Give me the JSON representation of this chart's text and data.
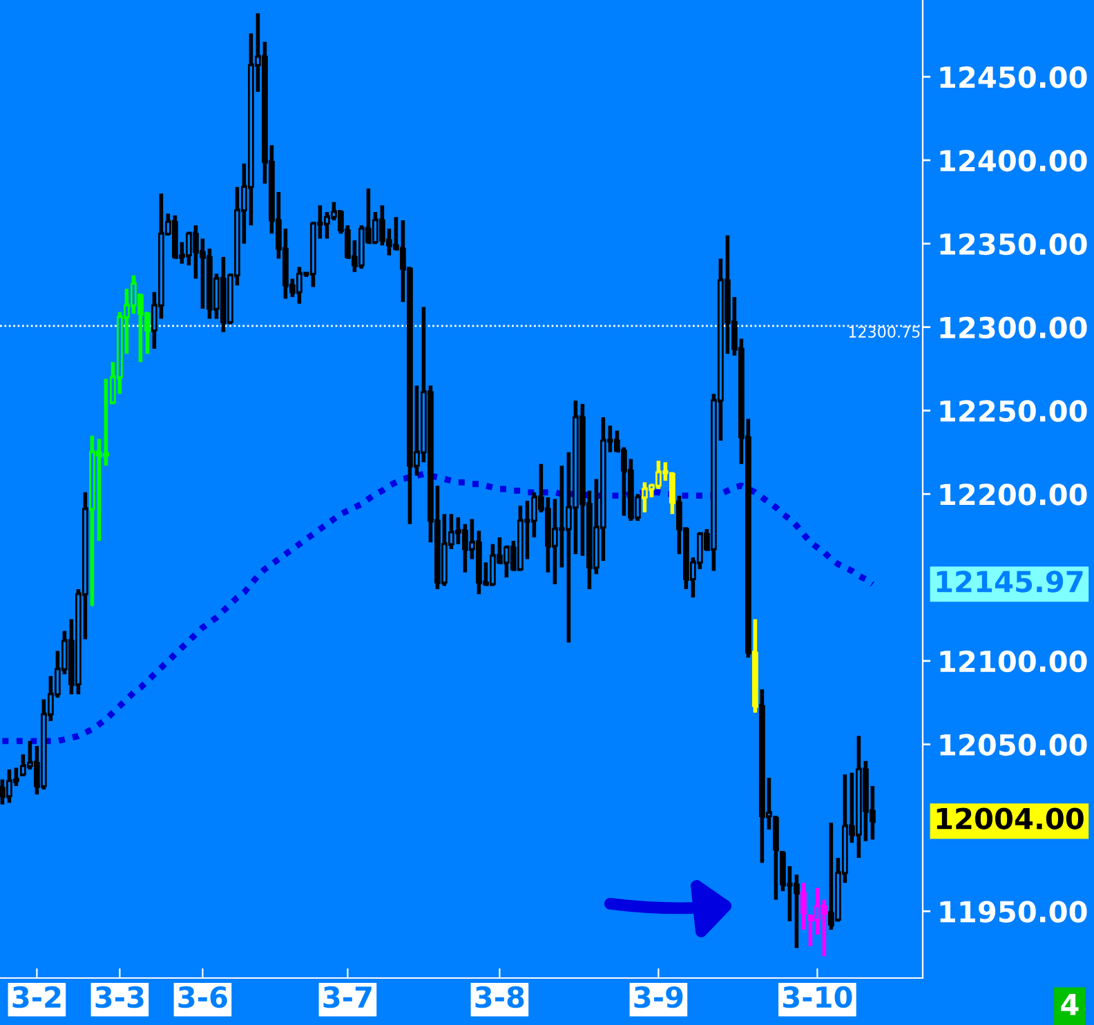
{
  "chart_data": {
    "type": "candlestick",
    "categories": [
      null,
      null,
      null,
      null,
      null,
      "3-2",
      null,
      null,
      null,
      null,
      null,
      null,
      null,
      null,
      null,
      null,
      null,
      "3-3",
      null,
      null,
      null,
      null,
      null,
      null,
      null,
      null,
      null,
      null,
      null,
      "3-6",
      null,
      null,
      null,
      null,
      null,
      null,
      null,
      null,
      null,
      null,
      null,
      null,
      null,
      null,
      null,
      null,
      null,
      null,
      null,
      null,
      "3-7",
      null,
      null,
      null,
      null,
      null,
      null,
      null,
      null,
      null,
      null,
      null,
      null,
      null,
      null,
      null,
      null,
      null,
      null,
      null,
      null,
      null,
      "3-8",
      null,
      null,
      null,
      null,
      null,
      null,
      null,
      null,
      null,
      null,
      null,
      null,
      null,
      null,
      null,
      null,
      null,
      null,
      null,
      null,
      null,
      null,
      "3-9",
      null,
      null,
      null,
      null,
      null,
      null,
      null,
      null,
      null,
      null,
      null,
      null,
      null,
      null,
      null,
      null,
      null,
      null,
      null,
      null,
      null,
      null,
      "3-10",
      null,
      null,
      null,
      null,
      null,
      null,
      null,
      null
    ],
    "ohlc": [
      [
        12024,
        12029,
        12014,
        12019
      ],
      [
        12019,
        12035,
        12015,
        12028
      ],
      [
        12028,
        12036,
        12025,
        12029
      ],
      [
        12032,
        12044,
        12032,
        12037
      ],
      [
        12037,
        12052,
        12035,
        12039
      ],
      [
        12039,
        12049,
        12020,
        12025
      ],
      [
        12025,
        12077,
        12023,
        12068
      ],
      [
        12068,
        12091,
        12064,
        12080
      ],
      [
        12080,
        12106,
        12078,
        12095
      ],
      [
        12095,
        12118,
        12092,
        12112
      ],
      [
        12112,
        12125,
        12080,
        12086
      ],
      [
        12086,
        12143,
        12080,
        12140
      ],
      [
        12140,
        12201,
        12113,
        12191
      ],
      [
        12191,
        12235,
        12133,
        12225
      ],
      [
        12225,
        12233,
        12172,
        12223
      ],
      [
        12223,
        12269,
        12217,
        12224
      ],
      [
        12255,
        12279,
        12255,
        12270
      ],
      [
        12270,
        12309,
        12260,
        12306
      ],
      [
        12306,
        12323,
        12284,
        12313
      ],
      [
        12313,
        12331,
        12308,
        12326
      ],
      [
        12319,
        12319,
        12279,
        12308
      ],
      [
        12308,
        12308,
        12284,
        12298
      ],
      [
        12298,
        12321,
        12287,
        12313
      ],
      [
        12313,
        12380,
        12305,
        12356
      ],
      [
        12356,
        12368,
        12355,
        12363
      ],
      [
        12363,
        12367,
        12341,
        12342
      ],
      [
        12342,
        12351,
        12338,
        12343
      ],
      [
        12343,
        12357,
        12337,
        12356
      ],
      [
        12356,
        12361,
        12329,
        12345
      ],
      [
        12345,
        12353,
        12311,
        12342
      ],
      [
        12342,
        12347,
        12305,
        12311
      ],
      [
        12311,
        12332,
        12305,
        12329
      ],
      [
        12329,
        12342,
        12297,
        12303
      ],
      [
        12303,
        12332,
        12302,
        12331
      ],
      [
        12331,
        12384,
        12325,
        12370
      ],
      [
        12370,
        12398,
        12350,
        12384
      ],
      [
        12384,
        12476,
        12361,
        12457
      ],
      [
        12457,
        12488,
        12441,
        12462
      ],
      [
        12462,
        12471,
        12386,
        12399
      ],
      [
        12399,
        12409,
        12356,
        12364
      ],
      [
        12364,
        12381,
        12341,
        12347
      ],
      [
        12347,
        12359,
        12317,
        12325
      ],
      [
        12325,
        12329,
        12318,
        12321
      ],
      [
        12321,
        12336,
        12314,
        12332
      ],
      [
        12332,
        12333,
        12330,
        12332
      ],
      [
        12332,
        12363,
        12324,
        12362
      ],
      [
        12362,
        12373,
        12353,
        12362
      ],
      [
        12362,
        12369,
        12353,
        12366
      ],
      [
        12366,
        12375,
        12364,
        12369
      ],
      [
        12369,
        12370,
        12356,
        12358
      ],
      [
        12358,
        12361,
        12341,
        12342
      ],
      [
        12342,
        12352,
        12333,
        12337
      ],
      [
        12337,
        12361,
        12335,
        12359
      ],
      [
        12359,
        12383,
        12350,
        12351
      ],
      [
        12351,
        12369,
        12350,
        12364
      ],
      [
        12364,
        12373,
        12349,
        12352
      ],
      [
        12352,
        12359,
        12343,
        12349
      ],
      [
        12349,
        12366,
        12346,
        12347
      ],
      [
        12347,
        12364,
        12315,
        12335
      ],
      [
        12335,
        12336,
        12182,
        12217
      ],
      [
        12217,
        12265,
        12211,
        12225
      ],
      [
        12225,
        12312,
        12219,
        12261
      ],
      [
        12261,
        12265,
        12171,
        12184
      ],
      [
        12184,
        12205,
        12143,
        12147
      ],
      [
        12147,
        12188,
        12145,
        12170
      ],
      [
        12170,
        12188,
        12167,
        12177
      ],
      [
        12177,
        12186,
        12170,
        12178
      ],
      [
        12178,
        12182,
        12153,
        12167
      ],
      [
        12167,
        12185,
        12161,
        12171
      ],
      [
        12171,
        12178,
        12140,
        12147
      ],
      [
        12147,
        12159,
        12145,
        12146
      ],
      [
        12146,
        12170,
        12146,
        12163
      ],
      [
        12163,
        12174,
        12158,
        12159
      ],
      [
        12159,
        12169,
        12150,
        12168
      ],
      [
        12168,
        12172,
        12155,
        12155
      ],
      [
        12155,
        12193,
        12155,
        12184
      ],
      [
        12184,
        12196,
        12161,
        12184
      ],
      [
        12184,
        12201,
        12174,
        12198
      ],
      [
        12198,
        12218,
        12189,
        12191
      ],
      [
        12191,
        12198,
        12153,
        12169
      ],
      [
        12169,
        12197,
        12146,
        12179
      ],
      [
        12179,
        12217,
        12156,
        12179
      ],
      [
        12179,
        12225,
        12111,
        12192
      ],
      [
        12192,
        12256,
        12164,
        12246
      ],
      [
        12246,
        12254,
        12163,
        12194
      ],
      [
        12194,
        12202,
        12143,
        12156
      ],
      [
        12156,
        12209,
        12152,
        12180
      ],
      [
        12180,
        12246,
        12160,
        12232
      ],
      [
        12232,
        12241,
        12225,
        12232
      ],
      [
        12232,
        12238,
        12225,
        12226
      ],
      [
        12226,
        12228,
        12187,
        12214
      ],
      [
        12214,
        12221,
        12184,
        12186
      ],
      [
        12186,
        12200,
        12184,
        12198
      ],
      [
        12198,
        12207,
        12189,
        12203
      ],
      [
        12203,
        12206,
        12198,
        12205
      ],
      [
        12205,
        12220,
        12203,
        12213
      ],
      [
        12213,
        12219,
        12208,
        12213
      ],
      [
        12212,
        12212,
        12188,
        12195
      ],
      [
        12195,
        12199,
        12164,
        12179
      ],
      [
        12179,
        12179,
        12143,
        12149
      ],
      [
        12149,
        12162,
        12138,
        12159
      ],
      [
        12159,
        12177,
        12155,
        12176
      ],
      [
        12176,
        12179,
        12167,
        12167
      ],
      [
        12167,
        12260,
        12154,
        12256
      ],
      [
        12256,
        12341,
        12232,
        12328
      ],
      [
        12328,
        12355,
        12284,
        12303
      ],
      [
        12303,
        12318,
        12283,
        12287
      ],
      [
        12287,
        12293,
        12218,
        12234
      ],
      [
        12234,
        12245,
        12102,
        12105
      ],
      [
        12105,
        12125,
        12069,
        12073
      ],
      [
        12073,
        12083,
        11979,
        12007
      ],
      [
        12007,
        12030,
        11999,
        12009
      ],
      [
        12006,
        12006,
        11957,
        11987
      ],
      [
        11985,
        11985,
        11962,
        11966
      ],
      [
        11966,
        11977,
        11944,
        11966
      ],
      [
        11966,
        11972,
        11928,
        11961
      ],
      [
        11961,
        11967,
        11939,
        11949
      ],
      [
        11947,
        11947,
        11929,
        11945
      ],
      [
        11945,
        11964,
        11936,
        11953
      ],
      [
        11953,
        11957,
        11923,
        11949
      ],
      [
        11949,
        12003,
        11939,
        11942
      ],
      [
        11945,
        11982,
        11945,
        11973
      ],
      [
        11973,
        12032,
        11967,
        12001
      ],
      [
        12001,
        12033,
        11991,
        11996
      ],
      [
        11996,
        12055,
        11982,
        12035
      ],
      [
        12035,
        12040,
        11992,
        12010
      ],
      [
        12010,
        12025,
        11993,
        12004
      ]
    ],
    "colors": [
      "#000000",
      "#000000",
      "#000000",
      "#000000",
      "#000000",
      "#000000",
      "#000000",
      "#000000",
      "#000000",
      "#000000",
      "#000000",
      "#000000",
      "#000000",
      "#00ff00",
      "#00ff00",
      "#00ff00",
      "#00ff00",
      "#00ff00",
      "#00ff00",
      "#00ff00",
      "#00ff00",
      "#00ff00",
      "#000000",
      "#000000",
      "#000000",
      "#000000",
      "#000000",
      "#000000",
      "#000000",
      "#000000",
      "#000000",
      "#000000",
      "#000000",
      "#000000",
      "#000000",
      "#000000",
      "#000000",
      "#000000",
      "#000000",
      "#000000",
      "#000000",
      "#000000",
      "#000000",
      "#000000",
      "#000000",
      "#000000",
      "#000000",
      "#000000",
      "#000000",
      "#000000",
      "#000000",
      "#000000",
      "#000000",
      "#000000",
      "#000000",
      "#000000",
      "#000000",
      "#000000",
      "#000000",
      "#000000",
      "#000000",
      "#000000",
      "#000000",
      "#000000",
      "#000000",
      "#000000",
      "#000000",
      "#000000",
      "#000000",
      "#000000",
      "#000000",
      "#000000",
      "#000000",
      "#000000",
      "#000000",
      "#000000",
      "#000000",
      "#000000",
      "#000000",
      "#000000",
      "#000000",
      "#000000",
      "#000000",
      "#000000",
      "#000000",
      "#000000",
      "#000000",
      "#000000",
      "#000000",
      "#000000",
      "#000000",
      "#000000",
      "#000000",
      "#ffff00",
      "#ffff00",
      "#ffff00",
      "#ffff00",
      "#ffff00",
      "#000000",
      "#000000",
      "#000000",
      "#000000",
      "#000000",
      "#000000",
      "#000000",
      "#000000",
      "#000000",
      "#000000",
      "#000000",
      "#ffff00",
      "#000000",
      "#000000",
      "#000000",
      "#000000",
      "#000000",
      "#000000",
      "#ff00ff",
      "#ff00ff",
      "#ff00ff",
      "#ff00ff",
      "#000000",
      "#000000",
      "#000000",
      "#000000",
      "#000000",
      "#000000",
      "#000000"
    ],
    "series": [
      {
        "type": "line",
        "color": "#0000e0",
        "line_style": "dotted",
        "marker": "none",
        "values": [
          12052,
          12052,
          12052,
          12052,
          12052,
          12052,
          12052,
          12052,
          12052,
          12053,
          12054,
          12055,
          12057,
          12059,
          12062,
          12065,
          12069,
          12073,
          12077,
          12081,
          12084,
          12088,
          12092,
          12096,
          12100,
          12104,
          12108,
          12112,
          12116,
          12120,
          12123,
          12126,
          12130,
          12134,
          12138,
          12141,
          12146,
          12151,
          12155,
          12158,
          12161,
          12164,
          12167,
          12170,
          12173,
          12176,
          12179,
          12182,
          12185,
          12188,
          12190,
          12192,
          12194,
          12197,
          12200,
          12202,
          12205,
          12207,
          12209,
          12210,
          12211,
          12212,
          12211,
          12210,
          12209,
          12208,
          12207,
          12207,
          12206,
          12206,
          12205,
          12204,
          12203,
          12203,
          12202,
          12202,
          12201,
          12201,
          12201,
          12201,
          12201,
          12200,
          12200,
          12200,
          12200,
          12199,
          12199,
          12199,
          12199,
          12199,
          12199,
          12200,
          12200,
          12201,
          12201,
          12201,
          12200,
          12200,
          12199,
          12199,
          12199,
          12199,
          12199,
          12199,
          12200,
          12202,
          12204,
          12205,
          12203,
          12201,
          12198,
          12195,
          12192,
          12188,
          12185,
          12181,
          12176,
          12171,
          12168,
          12165,
          12161,
          12158,
          12156,
          12154,
          12151,
          12149,
          12146
        ]
      }
    ],
    "ylim": [
      11910,
      12496
    ],
    "yticks": [
      {
        "value": 11950,
        "label": "11950.00"
      },
      {
        "value": 12050,
        "label": "12050.00"
      },
      {
        "value": 12100,
        "label": "12100.00"
      },
      {
        "value": 12200,
        "label": "12200.00"
      },
      {
        "value": 12250,
        "label": "12250.00"
      },
      {
        "value": 12300,
        "label": "12300.00"
      },
      {
        "value": 12350,
        "label": "12350.00"
      },
      {
        "value": 12400,
        "label": "12400.00"
      },
      {
        "value": 12450,
        "label": "12450.00"
      }
    ],
    "ref_lines": [
      {
        "axis": "y",
        "value": 12300.75,
        "label": "12300.75",
        "color": "#ffffff",
        "line_style": "dotted"
      }
    ],
    "annotations": [
      "12145.97",
      "12004.00",
      "4"
    ],
    "grid": false,
    "legend": false
  }
}
